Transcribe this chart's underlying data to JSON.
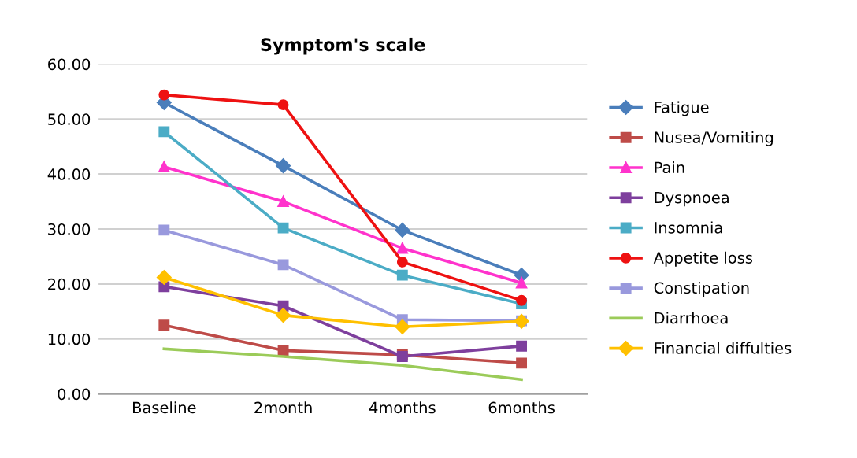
{
  "chart_data": {
    "type": "line",
    "title": "Symptom's scale",
    "categories": [
      "Baseline",
      "2month",
      "4months",
      "6months"
    ],
    "series": [
      {
        "name": "Fatigue",
        "color": "#4a7ebb",
        "marker": "diamond",
        "values": [
          53.0,
          41.5,
          29.8,
          21.6
        ]
      },
      {
        "name": "Nusea/Vomiting",
        "color": "#be4b48",
        "marker": "square",
        "values": [
          12.5,
          7.9,
          7.1,
          5.6
        ]
      },
      {
        "name": "Pain",
        "color": "#ff33cc",
        "marker": "triangle",
        "values": [
          41.3,
          35.0,
          26.5,
          20.2
        ]
      },
      {
        "name": "Dyspnoea",
        "color": "#7e3f9d",
        "marker": "square",
        "values": [
          19.5,
          16.0,
          6.8,
          8.7
        ]
      },
      {
        "name": "Insomnia",
        "color": "#4bacc6",
        "marker": "square",
        "values": [
          47.7,
          30.2,
          21.6,
          16.4
        ]
      },
      {
        "name": "Appetite loss",
        "color": "#ee1111",
        "marker": "circle",
        "values": [
          54.4,
          52.6,
          24.0,
          17.0
        ]
      },
      {
        "name": "Constipation",
        "color": "#9999dd",
        "marker": "square",
        "values": [
          29.8,
          23.5,
          13.5,
          13.3
        ]
      },
      {
        "name": "Diarrhoea",
        "color": "#9bcb59",
        "marker": "none",
        "values": [
          8.2,
          6.8,
          5.2,
          2.6
        ]
      },
      {
        "name": "Financial diffulties",
        "color": "#ffc000",
        "marker": "diamond",
        "values": [
          21.2,
          14.3,
          12.2,
          13.2
        ]
      }
    ],
    "ylim": [
      0,
      60
    ],
    "yticks": [
      {
        "value": 0,
        "label": "0.00"
      },
      {
        "value": 10,
        "label": "10.00"
      },
      {
        "value": 20,
        "label": "20.00"
      },
      {
        "value": 30,
        "label": "30.00"
      },
      {
        "value": 40,
        "label": "40.00"
      },
      {
        "value": 50,
        "label": "50.00"
      },
      {
        "value": 60,
        "label": "60.00"
      }
    ],
    "grid": "y",
    "legend": "right",
    "line_style": "solid"
  }
}
